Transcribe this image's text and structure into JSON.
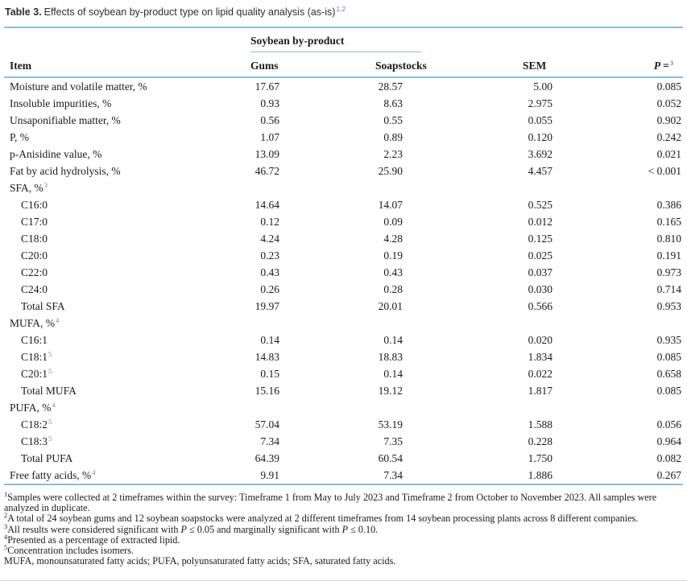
{
  "colors": {
    "rule": "#87bedf",
    "superscript": "#5b7fc7"
  },
  "title": {
    "label": "Table 3.",
    "text": "Effects of soybean by-product type on lipid quality analysis (as-is)",
    "sup": "1,2"
  },
  "table": {
    "spanner_label": "Soybean by-product",
    "headers": {
      "item": "Item",
      "gums": "Gums",
      "soapstocks": "Soapstocks",
      "sem": "SEM",
      "p_label": "P =",
      "p_sup": "3"
    },
    "rows": [
      {
        "label": "Moisture and volatile matter, %",
        "sup": "",
        "indent": false,
        "section": false,
        "values": [
          "17.67",
          "28.57",
          "5.00",
          "0.085"
        ]
      },
      {
        "label": "Insoluble impurities, %",
        "sup": "",
        "indent": false,
        "section": false,
        "values": [
          "0.93",
          "8.63",
          "2.975",
          "0.052"
        ]
      },
      {
        "label": "Unsaponifiable matter, %",
        "sup": "",
        "indent": false,
        "section": false,
        "values": [
          "0.56",
          "0.55",
          "0.055",
          "0.902"
        ]
      },
      {
        "label": "P, %",
        "sup": "",
        "indent": false,
        "section": false,
        "values": [
          "1.07",
          "0.89",
          "0.120",
          "0.242"
        ]
      },
      {
        "label": "p-Anisidine value, %",
        "sup": "",
        "indent": false,
        "section": false,
        "values": [
          "13.09",
          "2.23",
          "3.692",
          "0.021"
        ]
      },
      {
        "label": "Fat by acid hydrolysis, %",
        "sup": "",
        "indent": false,
        "section": false,
        "values": [
          "46.72",
          "25.90",
          "4.457",
          "< 0.001"
        ]
      },
      {
        "label": "SFA, %",
        "sup": "3",
        "indent": false,
        "section": true,
        "values": [
          "",
          "",
          "",
          ""
        ]
      },
      {
        "label": "C16:0",
        "sup": "",
        "indent": true,
        "section": false,
        "values": [
          "14.64",
          "14.07",
          "0.525",
          "0.386"
        ]
      },
      {
        "label": "C17:0",
        "sup": "",
        "indent": true,
        "section": false,
        "values": [
          "0.12",
          "0.09",
          "0.012",
          "0.165"
        ]
      },
      {
        "label": "C18:0",
        "sup": "",
        "indent": true,
        "section": false,
        "values": [
          "4.24",
          "4.28",
          "0.125",
          "0.810"
        ]
      },
      {
        "label": "C20:0",
        "sup": "",
        "indent": true,
        "section": false,
        "values": [
          "0.23",
          "0.19",
          "0.025",
          "0.191"
        ]
      },
      {
        "label": "C22:0",
        "sup": "",
        "indent": true,
        "section": false,
        "values": [
          "0.43",
          "0.43",
          "0.037",
          "0.973"
        ]
      },
      {
        "label": "C24:0",
        "sup": "",
        "indent": true,
        "section": false,
        "values": [
          "0.26",
          "0.28",
          "0.030",
          "0.714"
        ]
      },
      {
        "label": "Total SFA",
        "sup": "",
        "indent": true,
        "section": false,
        "values": [
          "19.97",
          "20.01",
          "0.566",
          "0.953"
        ]
      },
      {
        "label": "MUFA, %",
        "sup": "4",
        "indent": false,
        "section": true,
        "values": [
          "",
          "",
          "",
          ""
        ]
      },
      {
        "label": "C16:1",
        "sup": "",
        "indent": true,
        "section": false,
        "values": [
          "0.14",
          "0.14",
          "0.020",
          "0.935"
        ]
      },
      {
        "label": "C18:1",
        "sup": "5",
        "indent": true,
        "section": false,
        "values": [
          "14.83",
          "18.83",
          "1.834",
          "0.085"
        ]
      },
      {
        "label": "C20:1",
        "sup": "5",
        "indent": true,
        "section": false,
        "values": [
          "0.15",
          "0.14",
          "0.022",
          "0.658"
        ]
      },
      {
        "label": "Total MUFA",
        "sup": "",
        "indent": true,
        "section": false,
        "values": [
          "15.16",
          "19.12",
          "1.817",
          "0.085"
        ]
      },
      {
        "label": "PUFA, %",
        "sup": "4",
        "indent": false,
        "section": true,
        "values": [
          "",
          "",
          "",
          ""
        ]
      },
      {
        "label": "C18:2",
        "sup": "5",
        "indent": true,
        "section": false,
        "values": [
          "57.04",
          "53.19",
          "1.588",
          "0.056"
        ]
      },
      {
        "label": "C18:3",
        "sup": "5",
        "indent": true,
        "section": false,
        "values": [
          "7.34",
          "7.35",
          "0.228",
          "0.964"
        ]
      },
      {
        "label": "Total PUFA",
        "sup": "",
        "indent": true,
        "section": false,
        "values": [
          "64.39",
          "60.54",
          "1.750",
          "0.082"
        ]
      },
      {
        "label": "Free fatty acids, %",
        "sup": "4",
        "indent": false,
        "section": false,
        "values": [
          "9.91",
          "7.34",
          "1.886",
          "0.267"
        ]
      }
    ]
  },
  "footnotes": [
    {
      "sup": "1",
      "text": "Samples were collected at 2 timeframes within the survey: Timeframe 1 from May to July 2023 and Timeframe 2 from October to November 2023. All samples were analyzed in duplicate."
    },
    {
      "sup": "2",
      "text": "A total of 24 soybean gums and 12 soybean soapstocks were analyzed at 2 different timeframes from 14 soybean processing plants across 8 different companies."
    },
    {
      "sup": "3",
      "text": "All results were considered significant with P ≤ 0.05 and marginally significant with P ≤ 0.10."
    },
    {
      "sup": "4",
      "text": "Presented as a percentage of extracted lipid."
    },
    {
      "sup": "5",
      "text": "Concentration includes isomers."
    },
    {
      "sup": "",
      "text": "MUFA, monounsaturated fatty acids; PUFA, polyunsaturated fatty acids; SFA, saturated fatty acids."
    }
  ]
}
